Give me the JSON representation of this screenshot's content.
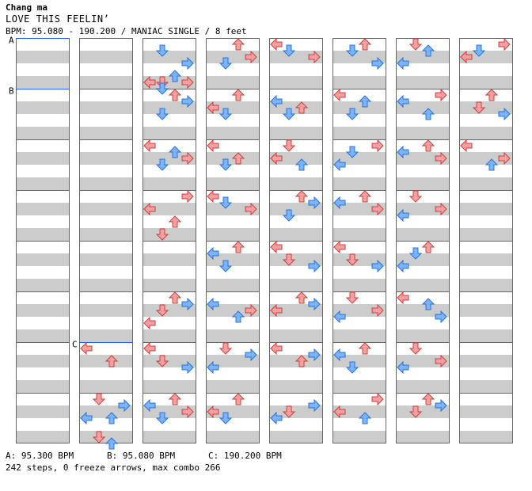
{
  "header": {
    "artist": "Chang ma",
    "title": "LOVE THIS FEELIN’",
    "info": "BPM: 95.080 - 190.200 / MANIAC SINGLE / 8 feet"
  },
  "bpm_markers": [
    {
      "label": "A",
      "legend": "A: 95.300 BPM"
    },
    {
      "label": "B",
      "legend": "B: 95.080 BPM"
    },
    {
      "label": "C",
      "legend": "C: 190.200 BPM"
    }
  ],
  "footer": {
    "stats": "242 steps, 0 freeze arrows, max combo 266"
  },
  "colors": {
    "quarter_fill": "#f4a0a0",
    "quarter_stroke": "#c84040",
    "eighth_fill": "#78b4ff",
    "eighth_stroke": "#3070d0",
    "sixteenth_fill": "#f8b8f8",
    "sixteenth_stroke": "#b050b0",
    "stripe": "#cccccc",
    "bpm_line": "#2060ff"
  },
  "chart": {
    "columns": 8,
    "measures_per_column": 8,
    "lanes": [
      "left",
      "down",
      "up",
      "right"
    ],
    "arrows": [
      [
        1,
        6,
        0,
        0
      ],
      [
        1,
        6,
        2,
        2
      ],
      [
        1,
        7,
        0,
        1
      ],
      [
        1,
        7,
        1,
        3
      ],
      [
        1,
        7,
        3,
        0
      ],
      [
        1,
        7,
        3,
        2
      ],
      [
        1,
        7,
        6,
        1
      ],
      [
        1,
        7,
        7,
        2
      ],
      [
        2,
        0,
        1,
        1
      ],
      [
        2,
        0,
        3,
        3
      ],
      [
        2,
        0,
        5,
        2
      ],
      [
        2,
        0,
        6,
        1
      ],
      [
        2,
        0,
        6,
        0
      ],
      [
        2,
        0,
        7,
        1
      ],
      [
        2,
        0,
        6,
        3
      ],
      [
        2,
        1,
        0,
        2
      ],
      [
        2,
        1,
        1,
        3
      ],
      [
        2,
        1,
        3,
        1
      ],
      [
        2,
        2,
        0,
        0
      ],
      [
        2,
        2,
        1,
        2
      ],
      [
        2,
        2,
        2,
        3
      ],
      [
        2,
        2,
        3,
        1
      ],
      [
        2,
        3,
        0,
        3
      ],
      [
        2,
        3,
        2,
        0
      ],
      [
        2,
        3,
        4,
        2
      ],
      [
        2,
        3,
        6,
        1
      ],
      [
        2,
        5,
        0,
        2
      ],
      [
        2,
        5,
        1,
        3
      ],
      [
        2,
        5,
        2,
        1
      ],
      [
        2,
        5,
        4,
        0
      ],
      [
        2,
        6,
        0,
        0
      ],
      [
        2,
        6,
        2,
        1
      ],
      [
        2,
        6,
        3,
        3
      ],
      [
        2,
        7,
        0,
        2
      ],
      [
        2,
        7,
        1,
        0
      ],
      [
        2,
        7,
        2,
        3
      ],
      [
        2,
        7,
        3,
        1
      ],
      [
        3,
        0,
        0,
        2
      ],
      [
        3,
        0,
        2,
        3
      ],
      [
        3,
        0,
        3,
        1
      ],
      [
        3,
        1,
        0,
        2
      ],
      [
        3,
        1,
        2,
        0
      ],
      [
        3,
        1,
        3,
        1
      ],
      [
        3,
        2,
        0,
        0
      ],
      [
        3,
        2,
        2,
        2
      ],
      [
        3,
        2,
        3,
        1
      ],
      [
        3,
        3,
        0,
        0
      ],
      [
        3,
        3,
        1,
        1
      ],
      [
        3,
        3,
        2,
        3
      ],
      [
        3,
        4,
        0,
        2
      ],
      [
        3,
        4,
        1,
        0
      ],
      [
        3,
        4,
        3,
        1
      ],
      [
        3,
        5,
        1,
        0
      ],
      [
        3,
        5,
        2,
        3
      ],
      [
        3,
        5,
        3,
        2
      ],
      [
        3,
        6,
        0,
        1
      ],
      [
        3,
        6,
        1,
        3
      ],
      [
        3,
        6,
        3,
        0
      ],
      [
        3,
        7,
        0,
        2
      ],
      [
        3,
        7,
        2,
        0
      ],
      [
        3,
        7,
        3,
        1
      ],
      [
        4,
        0,
        0,
        0
      ],
      [
        4,
        0,
        1,
        1
      ],
      [
        4,
        0,
        2,
        3
      ],
      [
        4,
        1,
        1,
        0
      ],
      [
        4,
        1,
        2,
        2
      ],
      [
        4,
        1,
        3,
        1
      ],
      [
        4,
        2,
        0,
        1
      ],
      [
        4,
        2,
        2,
        0
      ],
      [
        4,
        2,
        3,
        2
      ],
      [
        4,
        3,
        0,
        2
      ],
      [
        4,
        3,
        1,
        3
      ],
      [
        4,
        3,
        3,
        1
      ],
      [
        4,
        4,
        0,
        0
      ],
      [
        4,
        4,
        2,
        1
      ],
      [
        4,
        4,
        3,
        3
      ],
      [
        4,
        5,
        0,
        2
      ],
      [
        4,
        5,
        1,
        3
      ],
      [
        4,
        5,
        2,
        0
      ],
      [
        4,
        6,
        0,
        0
      ],
      [
        4,
        6,
        1,
        3
      ],
      [
        4,
        6,
        2,
        2
      ],
      [
        4,
        7,
        1,
        3
      ],
      [
        4,
        7,
        2,
        1
      ],
      [
        4,
        7,
        3,
        0
      ],
      [
        5,
        0,
        0,
        2
      ],
      [
        5,
        0,
        1,
        1
      ],
      [
        5,
        0,
        3,
        3
      ],
      [
        5,
        1,
        0,
        0
      ],
      [
        5,
        1,
        1,
        2
      ],
      [
        5,
        1,
        3,
        1
      ],
      [
        5,
        2,
        0,
        3
      ],
      [
        5,
        2,
        1,
        1
      ],
      [
        5,
        2,
        3,
        0
      ],
      [
        5,
        3,
        0,
        2
      ],
      [
        5,
        3,
        1,
        0
      ],
      [
        5,
        3,
        2,
        3
      ],
      [
        5,
        4,
        0,
        0
      ],
      [
        5,
        4,
        2,
        1
      ],
      [
        5,
        4,
        3,
        3
      ],
      [
        5,
        5,
        0,
        1
      ],
      [
        5,
        5,
        2,
        3
      ],
      [
        5,
        5,
        3,
        0
      ],
      [
        5,
        6,
        0,
        2
      ],
      [
        5,
        6,
        1,
        0
      ],
      [
        5,
        6,
        3,
        1
      ],
      [
        5,
        7,
        0,
        3
      ],
      [
        5,
        7,
        2,
        0
      ],
      [
        5,
        7,
        3,
        2
      ],
      [
        6,
        0,
        0,
        1
      ],
      [
        6,
        0,
        1,
        2
      ],
      [
        6,
        0,
        3,
        0
      ],
      [
        6,
        1,
        0,
        3
      ],
      [
        6,
        1,
        1,
        0
      ],
      [
        6,
        1,
        3,
        2
      ],
      [
        6,
        2,
        0,
        2
      ],
      [
        6,
        2,
        1,
        0
      ],
      [
        6,
        2,
        2,
        3
      ],
      [
        6,
        3,
        0,
        1
      ],
      [
        6,
        3,
        2,
        3
      ],
      [
        6,
        3,
        3,
        0
      ],
      [
        6,
        4,
        0,
        2
      ],
      [
        6,
        4,
        1,
        1
      ],
      [
        6,
        4,
        3,
        0
      ],
      [
        6,
        5,
        0,
        0
      ],
      [
        6,
        5,
        1,
        2
      ],
      [
        6,
        5,
        3,
        3
      ],
      [
        6,
        6,
        0,
        1
      ],
      [
        6,
        6,
        2,
        3
      ],
      [
        6,
        6,
        3,
        0
      ],
      [
        6,
        7,
        0,
        2
      ],
      [
        6,
        7,
        1,
        3
      ],
      [
        6,
        7,
        2,
        1
      ],
      [
        7,
        0,
        0,
        3
      ],
      [
        7,
        0,
        1,
        1
      ],
      [
        7,
        0,
        2,
        0
      ],
      [
        7,
        1,
        0,
        2
      ],
      [
        7,
        1,
        2,
        1
      ],
      [
        7,
        1,
        3,
        3
      ],
      [
        7,
        2,
        0,
        0
      ],
      [
        7,
        2,
        2,
        3
      ],
      [
        7,
        2,
        3,
        2
      ]
    ]
  }
}
